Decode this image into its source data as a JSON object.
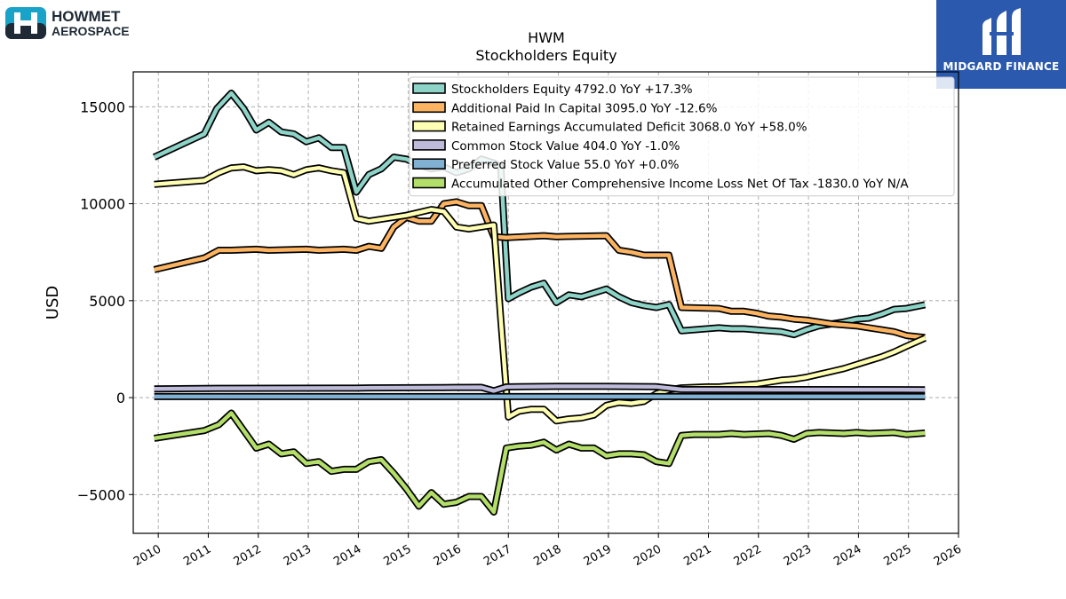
{
  "branding": {
    "left_logo_line1": "HOWMET",
    "left_logo_line2": "AEROSPACE",
    "right_logo_text": "MIDGARD FINANCE"
  },
  "chart_data": {
    "type": "line",
    "title": "HWM",
    "subtitle": "Stockholders  Equity",
    "ylabel": "USD",
    "xlabel": "",
    "xlim": [
      2009.5,
      2026.0
    ],
    "ylim": [
      -7000,
      16800
    ],
    "yticks": [
      -5000,
      0,
      5000,
      10000,
      15000
    ],
    "ytick_labels": [
      "−5000",
      "0",
      "5000",
      "10000",
      "15000"
    ],
    "xticks": [
      2010,
      2011,
      2012,
      2013,
      2014,
      2015,
      2016,
      2017,
      2018,
      2019,
      2020,
      2021,
      2022,
      2023,
      2024,
      2025,
      2026
    ],
    "xtick_labels": [
      "2010",
      "2011",
      "2012",
      "2013",
      "2014",
      "2015",
      "2016",
      "2017",
      "2018",
      "2019",
      "2020",
      "2021",
      "2022",
      "2023",
      "2024",
      "2025",
      "2026"
    ],
    "grid": true,
    "legend_position": "top-right",
    "series": [
      {
        "name": "Stockholders Equity",
        "legend_label": "Stockholders Equity  4792.0 YoY +17.3%",
        "color": "#8dd3c7",
        "points": [
          [
            2009.92,
            12400
          ],
          [
            2010.92,
            13600
          ],
          [
            2011.17,
            14900
          ],
          [
            2011.46,
            15700
          ],
          [
            2011.71,
            14900
          ],
          [
            2011.96,
            13800
          ],
          [
            2012.21,
            14200
          ],
          [
            2012.46,
            13700
          ],
          [
            2012.71,
            13600
          ],
          [
            2012.96,
            13200
          ],
          [
            2013.21,
            13400
          ],
          [
            2013.46,
            12900
          ],
          [
            2013.71,
            12900
          ],
          [
            2013.96,
            10600
          ],
          [
            2014.21,
            11500
          ],
          [
            2014.46,
            11800
          ],
          [
            2014.71,
            12400
          ],
          [
            2014.96,
            12300
          ],
          [
            2015.21,
            12000
          ],
          [
            2015.46,
            11800
          ],
          [
            2015.71,
            11900
          ],
          [
            2015.96,
            11600
          ],
          [
            2016.21,
            11800
          ],
          [
            2016.46,
            12300
          ],
          [
            2016.71,
            12100
          ],
          [
            2016.85,
            11900
          ],
          [
            2017.0,
            5100
          ],
          [
            2017.21,
            5400
          ],
          [
            2017.46,
            5700
          ],
          [
            2017.71,
            5900
          ],
          [
            2017.96,
            4900
          ],
          [
            2018.21,
            5300
          ],
          [
            2018.46,
            5200
          ],
          [
            2018.71,
            5400
          ],
          [
            2018.96,
            5600
          ],
          [
            2019.21,
            5200
          ],
          [
            2019.46,
            4900
          ],
          [
            2019.71,
            4750
          ],
          [
            2019.96,
            4650
          ],
          [
            2020.21,
            4800
          ],
          [
            2020.46,
            3450
          ],
          [
            2020.71,
            3500
          ],
          [
            2020.96,
            3550
          ],
          [
            2021.21,
            3600
          ],
          [
            2021.46,
            3550
          ],
          [
            2021.71,
            3550
          ],
          [
            2021.96,
            3500
          ],
          [
            2022.21,
            3450
          ],
          [
            2022.46,
            3400
          ],
          [
            2022.71,
            3250
          ],
          [
            2022.96,
            3500
          ],
          [
            2023.21,
            3700
          ],
          [
            2023.46,
            3800
          ],
          [
            2023.71,
            3900
          ],
          [
            2023.96,
            4050
          ],
          [
            2024.21,
            4100
          ],
          [
            2024.46,
            4300
          ],
          [
            2024.71,
            4550
          ],
          [
            2024.96,
            4600
          ],
          [
            2025.33,
            4792
          ]
        ]
      },
      {
        "name": "Additional Paid In Capital",
        "legend_label": "Additional Paid In Capital  3095.0 YoY -12.6%",
        "color": "#fdb462",
        "points": [
          [
            2009.92,
            6600
          ],
          [
            2010.92,
            7200
          ],
          [
            2011.21,
            7600
          ],
          [
            2011.46,
            7600
          ],
          [
            2011.96,
            7650
          ],
          [
            2012.21,
            7600
          ],
          [
            2012.96,
            7650
          ],
          [
            2013.21,
            7600
          ],
          [
            2013.71,
            7650
          ],
          [
            2013.96,
            7600
          ],
          [
            2014.21,
            7800
          ],
          [
            2014.46,
            7700
          ],
          [
            2014.71,
            8800
          ],
          [
            2014.96,
            9300
          ],
          [
            2015.21,
            9100
          ],
          [
            2015.46,
            9100
          ],
          [
            2015.71,
            10000
          ],
          [
            2015.96,
            10100
          ],
          [
            2016.21,
            9900
          ],
          [
            2016.46,
            9900
          ],
          [
            2016.71,
            8300
          ],
          [
            2016.96,
            8250
          ],
          [
            2017.71,
            8350
          ],
          [
            2017.96,
            8300
          ],
          [
            2018.96,
            8350
          ],
          [
            2019.21,
            7600
          ],
          [
            2019.46,
            7500
          ],
          [
            2019.71,
            7350
          ],
          [
            2020.21,
            7350
          ],
          [
            2020.46,
            4650
          ],
          [
            2021.21,
            4600
          ],
          [
            2021.46,
            4450
          ],
          [
            2021.71,
            4450
          ],
          [
            2021.96,
            4350
          ],
          [
            2022.21,
            4200
          ],
          [
            2022.46,
            4150
          ],
          [
            2022.71,
            4050
          ],
          [
            2022.96,
            4000
          ],
          [
            2023.21,
            3900
          ],
          [
            2023.46,
            3800
          ],
          [
            2023.71,
            3750
          ],
          [
            2023.96,
            3700
          ],
          [
            2024.21,
            3600
          ],
          [
            2024.46,
            3500
          ],
          [
            2024.71,
            3400
          ],
          [
            2024.96,
            3200
          ],
          [
            2025.33,
            3095
          ]
        ]
      },
      {
        "name": "Retained Earnings Accumulated Deficit",
        "legend_label": "Retained Earnings Accumulated Deficit  3068.0 YoY +58.0%",
        "color": "#ffffb3",
        "points": [
          [
            2009.92,
            11000
          ],
          [
            2010.92,
            11200
          ],
          [
            2011.21,
            11600
          ],
          [
            2011.46,
            11850
          ],
          [
            2011.71,
            11900
          ],
          [
            2011.96,
            11700
          ],
          [
            2012.21,
            11750
          ],
          [
            2012.46,
            11700
          ],
          [
            2012.71,
            11500
          ],
          [
            2012.96,
            11750
          ],
          [
            2013.21,
            11850
          ],
          [
            2013.46,
            11700
          ],
          [
            2013.71,
            11600
          ],
          [
            2013.96,
            9250
          ],
          [
            2014.21,
            9100
          ],
          [
            2014.96,
            9400
          ],
          [
            2015.21,
            9550
          ],
          [
            2015.46,
            9700
          ],
          [
            2015.71,
            9600
          ],
          [
            2015.96,
            8800
          ],
          [
            2016.21,
            8700
          ],
          [
            2016.46,
            8800
          ],
          [
            2016.71,
            8900
          ],
          [
            2016.85,
            4000
          ],
          [
            2017.0,
            -1000
          ],
          [
            2017.21,
            -700
          ],
          [
            2017.46,
            -600
          ],
          [
            2017.71,
            -600
          ],
          [
            2017.96,
            -1200
          ],
          [
            2018.21,
            -1100
          ],
          [
            2018.46,
            -1050
          ],
          [
            2018.71,
            -900
          ],
          [
            2018.96,
            -400
          ],
          [
            2019.21,
            -250
          ],
          [
            2019.46,
            -300
          ],
          [
            2019.71,
            -200
          ],
          [
            2019.96,
            200
          ],
          [
            2020.21,
            400
          ],
          [
            2020.46,
            500
          ],
          [
            2020.96,
            550
          ],
          [
            2021.21,
            550
          ],
          [
            2021.46,
            600
          ],
          [
            2021.71,
            650
          ],
          [
            2021.96,
            700
          ],
          [
            2022.21,
            800
          ],
          [
            2022.46,
            900
          ],
          [
            2022.71,
            950
          ],
          [
            2022.96,
            1050
          ],
          [
            2023.21,
            1200
          ],
          [
            2023.46,
            1350
          ],
          [
            2023.71,
            1500
          ],
          [
            2023.96,
            1700
          ],
          [
            2024.21,
            1900
          ],
          [
            2024.46,
            2100
          ],
          [
            2024.71,
            2350
          ],
          [
            2024.96,
            2650
          ],
          [
            2025.33,
            3068
          ]
        ]
      },
      {
        "name": "Common Stock Value",
        "legend_label": "Common Stock Value  404.0 YoY -1.0%",
        "color": "#bebada",
        "points": [
          [
            2009.92,
            450
          ],
          [
            2010.92,
            470
          ],
          [
            2011.21,
            480
          ],
          [
            2013.96,
            490
          ],
          [
            2014.21,
            500
          ],
          [
            2015.71,
            520
          ],
          [
            2016.46,
            530
          ],
          [
            2016.71,
            350
          ],
          [
            2016.96,
            550
          ],
          [
            2017.21,
            560
          ],
          [
            2017.96,
            580
          ],
          [
            2018.96,
            580
          ],
          [
            2019.96,
            560
          ],
          [
            2020.46,
            420
          ],
          [
            2025.33,
            404
          ]
        ]
      },
      {
        "name": "Preferred Stock Value",
        "legend_label": "Preferred Stock Value  55.0 YoY +0.0%",
        "color": "#80b1d3",
        "points": [
          [
            2009.92,
            55
          ],
          [
            2025.33,
            55
          ]
        ]
      },
      {
        "name": "Accumulated Other Comprehensive Income Loss Net Of Tax",
        "legend_label": "Accumulated Other Comprehensive Income Loss Net Of Tax  -1830.0 YoY N/A",
        "color": "#b3de69",
        "points": [
          [
            2009.92,
            -2100
          ],
          [
            2010.92,
            -1700
          ],
          [
            2011.21,
            -1400
          ],
          [
            2011.46,
            -800
          ],
          [
            2011.71,
            -1700
          ],
          [
            2011.96,
            -2600
          ],
          [
            2012.21,
            -2400
          ],
          [
            2012.46,
            -2900
          ],
          [
            2012.71,
            -2800
          ],
          [
            2012.96,
            -3400
          ],
          [
            2013.21,
            -3300
          ],
          [
            2013.46,
            -3800
          ],
          [
            2013.71,
            -3700
          ],
          [
            2013.96,
            -3700
          ],
          [
            2014.21,
            -3300
          ],
          [
            2014.46,
            -3200
          ],
          [
            2014.71,
            -3900
          ],
          [
            2014.96,
            -4700
          ],
          [
            2015.21,
            -5600
          ],
          [
            2015.46,
            -4900
          ],
          [
            2015.71,
            -5500
          ],
          [
            2015.96,
            -5400
          ],
          [
            2016.21,
            -5100
          ],
          [
            2016.46,
            -5100
          ],
          [
            2016.71,
            -5900
          ],
          [
            2016.96,
            -2600
          ],
          [
            2017.21,
            -2500
          ],
          [
            2017.46,
            -2450
          ],
          [
            2017.71,
            -2300
          ],
          [
            2017.96,
            -2700
          ],
          [
            2018.21,
            -2400
          ],
          [
            2018.46,
            -2600
          ],
          [
            2018.71,
            -2600
          ],
          [
            2018.96,
            -3000
          ],
          [
            2019.21,
            -2900
          ],
          [
            2019.46,
            -2900
          ],
          [
            2019.71,
            -2950
          ],
          [
            2019.96,
            -3300
          ],
          [
            2020.21,
            -3400
          ],
          [
            2020.46,
            -1950
          ],
          [
            2020.71,
            -1900
          ],
          [
            2021.21,
            -1900
          ],
          [
            2021.46,
            -1850
          ],
          [
            2021.71,
            -1900
          ],
          [
            2022.21,
            -1850
          ],
          [
            2022.46,
            -1950
          ],
          [
            2022.71,
            -2150
          ],
          [
            2022.96,
            -1850
          ],
          [
            2023.21,
            -1800
          ],
          [
            2023.71,
            -1850
          ],
          [
            2023.96,
            -1800
          ],
          [
            2024.21,
            -1850
          ],
          [
            2024.71,
            -1800
          ],
          [
            2024.96,
            -1900
          ],
          [
            2025.33,
            -1830
          ]
        ]
      }
    ]
  }
}
